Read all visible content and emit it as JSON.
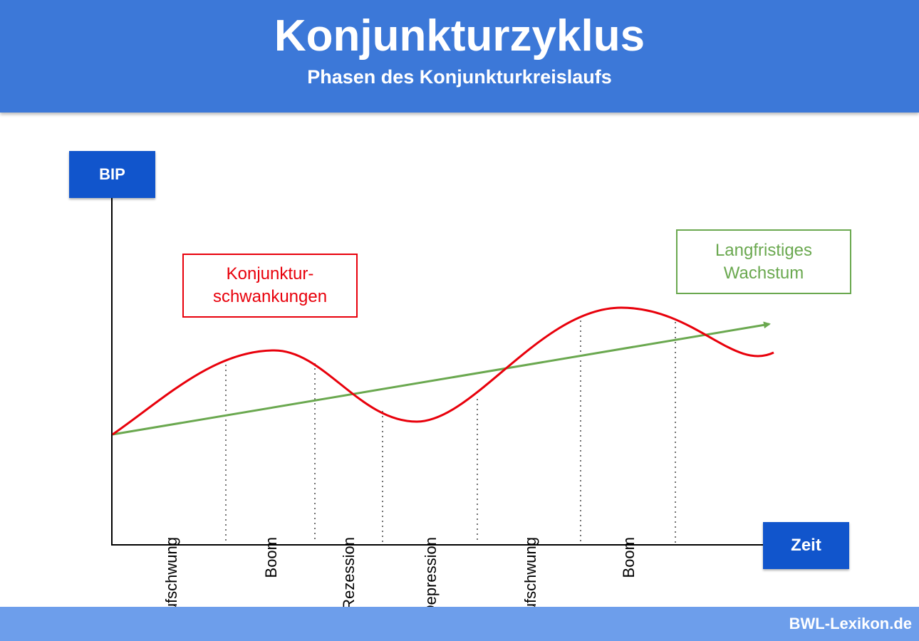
{
  "header": {
    "title": "Konjunkturzyklus",
    "subtitle": "Phasen des Konjunkturkreislaufs"
  },
  "axes": {
    "y_label": "BIP",
    "x_label": "Zeit"
  },
  "notes": {
    "fluctuations": "Konjunktur-\nschwankungen",
    "growth": "Langfristiges\nWachstum"
  },
  "phases": [
    "Aufschwung",
    "Boom",
    "Rezession",
    "Depression",
    "Aufschwung",
    "Boom"
  ],
  "colors": {
    "header": "#3c78d8",
    "axis_box": "#1155cc",
    "cycle_curve": "#e8000b",
    "trend_line": "#6aa84f",
    "footer": "#6d9eeb"
  },
  "footer": {
    "brand": "BWL-Lexikon.de"
  }
}
